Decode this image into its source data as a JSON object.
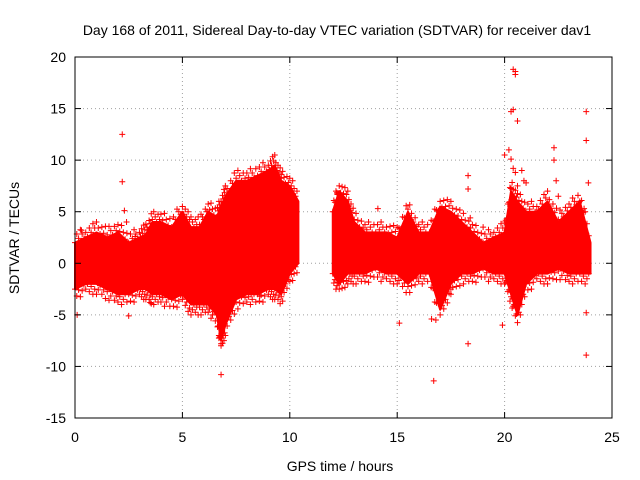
{
  "chart_data": {
    "type": "scatter",
    "title": "Day 168 of 2011, Sidereal Day-to-day VTEC variation (SDTVAR) for receiver dav1",
    "xlabel": "GPS time / hours",
    "ylabel": "SDTVAR / TECUs",
    "xlim": [
      0,
      25
    ],
    "ylim": [
      -15,
      20
    ],
    "xticks": [
      0,
      5,
      10,
      15,
      20,
      25
    ],
    "yticks": [
      -15,
      -10,
      -5,
      0,
      5,
      10,
      15,
      20
    ],
    "grid": true,
    "marker": "+",
    "color": "#ff0000",
    "series": [
      {
        "name": "SDTVAR",
        "envelope": {
          "x": [
            0.0,
            0.5,
            1.0,
            1.5,
            2.0,
            2.5,
            3.0,
            3.3,
            3.6,
            4.0,
            4.5,
            5.0,
            5.4,
            5.8,
            6.2,
            6.6,
            6.8,
            7.0,
            7.5,
            8.0,
            8.5,
            9.0,
            9.3,
            9.6,
            10.0,
            10.4
          ],
          "upper": [
            2.0,
            2.5,
            3.0,
            2.5,
            3.0,
            2.0,
            2.5,
            2.8,
            4.0,
            4.0,
            3.5,
            5.0,
            3.5,
            3.5,
            5.0,
            4.5,
            5.5,
            6.5,
            8.0,
            8.0,
            8.5,
            9.0,
            9.5,
            8.0,
            7.5,
            6.0
          ],
          "lower": [
            -2.5,
            -2.0,
            -2.0,
            -2.5,
            -3.0,
            -3.0,
            -2.5,
            -2.5,
            -3.0,
            -3.0,
            -3.5,
            -3.0,
            -4.0,
            -4.0,
            -4.0,
            -5.0,
            -7.5,
            -6.0,
            -3.5,
            -3.0,
            -3.0,
            -2.5,
            -2.5,
            -3.0,
            -1.0,
            0.0
          ]
        },
        "envelope2": {
          "x": [
            12.0,
            12.3,
            12.7,
            13.0,
            13.5,
            14.0,
            14.5,
            15.0,
            15.5,
            16.0,
            16.5,
            17.0,
            17.5,
            18.0,
            18.5,
            19.0,
            19.5,
            20.0,
            20.3,
            20.6,
            21.0,
            21.5,
            22.0,
            22.5,
            23.0,
            23.5,
            24.0
          ],
          "upper": [
            5.0,
            7.0,
            6.0,
            4.0,
            3.0,
            3.0,
            3.0,
            2.5,
            5.0,
            3.0,
            3.0,
            5.5,
            5.0,
            4.0,
            3.0,
            2.0,
            2.5,
            3.0,
            7.0,
            6.0,
            5.0,
            5.0,
            6.0,
            4.0,
            5.0,
            6.0,
            2.0
          ],
          "lower": [
            -1.0,
            -2.0,
            -1.0,
            -1.0,
            -1.0,
            -0.5,
            -1.0,
            -1.0,
            -2.0,
            -1.0,
            -1.0,
            -4.5,
            -2.0,
            -1.0,
            -1.0,
            -0.5,
            -1.0,
            -1.0,
            -3.0,
            -5.0,
            -2.0,
            -1.0,
            -1.0,
            -0.5,
            -1.0,
            -1.0,
            -1.0
          ]
        },
        "points": [
          [
            0.1,
            -5.0
          ],
          [
            0.3,
            3.2
          ],
          [
            2.2,
            12.5
          ],
          [
            2.2,
            7.9
          ],
          [
            2.3,
            5.1
          ],
          [
            2.4,
            4.0
          ],
          [
            2.5,
            -5.1
          ],
          [
            2.8,
            2.6
          ],
          [
            3.5,
            -3.8
          ],
          [
            6.8,
            -10.8
          ],
          [
            6.7,
            -7.0
          ],
          [
            6.8,
            -7.8
          ],
          [
            7.3,
            5.0
          ],
          [
            8.2,
            -3.0
          ],
          [
            8.6,
            -3.2
          ],
          [
            9.1,
            7.5
          ],
          [
            9.6,
            8.6
          ],
          [
            10.1,
            6.8
          ],
          [
            12.2,
            6.7
          ],
          [
            12.6,
            5.2
          ],
          [
            14.1,
            5.3
          ],
          [
            15.1,
            -5.8
          ],
          [
            16.6,
            -5.4
          ],
          [
            16.7,
            -11.4
          ],
          [
            16.8,
            -5.5
          ],
          [
            17.5,
            -2.5
          ],
          [
            18.3,
            -7.8
          ],
          [
            18.3,
            8.5
          ],
          [
            18.3,
            7.2
          ],
          [
            18.4,
            4.4
          ],
          [
            19.0,
            3.5
          ],
          [
            19.9,
            -6.0
          ],
          [
            20.0,
            10.5
          ],
          [
            20.2,
            11.0
          ],
          [
            20.3,
            14.7
          ],
          [
            20.4,
            14.9
          ],
          [
            20.4,
            18.8
          ],
          [
            20.5,
            18.6
          ],
          [
            20.5,
            18.3
          ],
          [
            20.6,
            13.8
          ],
          [
            20.3,
            10.1
          ],
          [
            20.4,
            9.2
          ],
          [
            20.5,
            8.8
          ],
          [
            20.6,
            7.5
          ],
          [
            20.8,
            9.0
          ],
          [
            20.9,
            8.0
          ],
          [
            20.7,
            -4.0
          ],
          [
            20.6,
            -3.5
          ],
          [
            21.0,
            7.8
          ],
          [
            22.3,
            11.2
          ],
          [
            22.3,
            10.0
          ],
          [
            22.4,
            8.0
          ],
          [
            22.5,
            6.5
          ],
          [
            23.2,
            -0.5
          ],
          [
            23.8,
            14.7
          ],
          [
            23.8,
            11.9
          ],
          [
            23.9,
            7.8
          ],
          [
            23.8,
            -4.8
          ],
          [
            23.8,
            -8.9
          ],
          [
            23.7,
            5.3
          ]
        ]
      }
    ]
  }
}
